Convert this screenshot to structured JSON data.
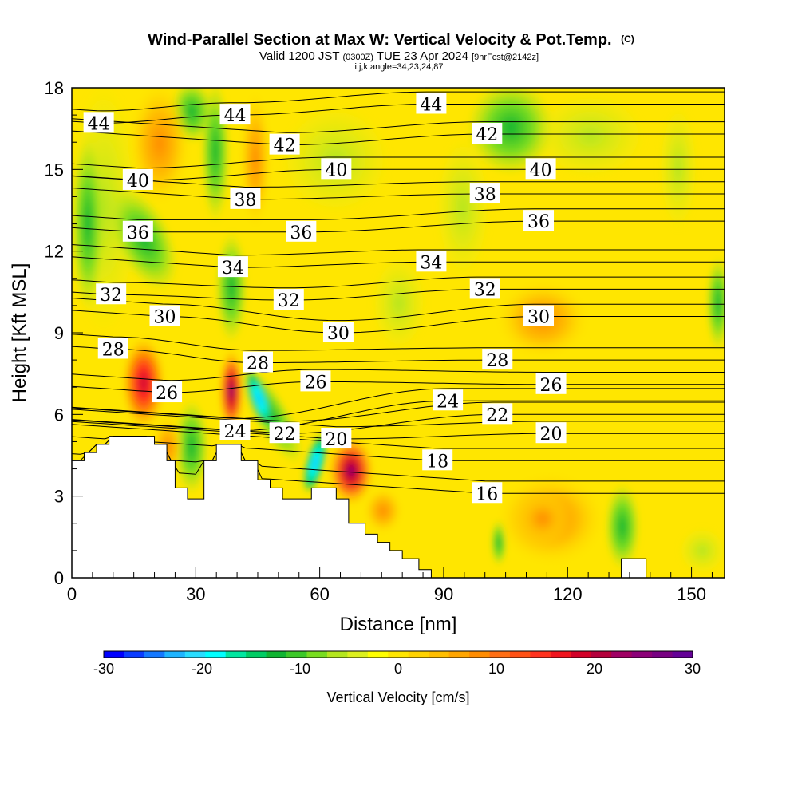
{
  "chart_data": {
    "type": "heatmap",
    "title": "Wind-Parallel Section at Max W: Vertical Velocity & Pot.Temp.",
    "title_mark": "(C)",
    "subtitle_prefix": "Valid 1200 JST",
    "subtitle_utc": "(0300Z)",
    "subtitle_date": "TUE 23 Apr 2024",
    "subtitle_fcst": "[9hrFcst@2142z]",
    "subtitle_indices": "i,j,k,angle=34,23,24,87",
    "xlabel": "Distance [nm]",
    "ylabel": "Height [Kft MSL]",
    "xlim": [
      0,
      158
    ],
    "ylim": [
      0,
      18
    ],
    "x_ticks": [
      0,
      30,
      60,
      90,
      120,
      150
    ],
    "y_ticks": [
      0,
      3,
      6,
      9,
      12,
      15,
      18
    ],
    "colorbar": {
      "label": "Vertical Velocity [cm/s]",
      "range": [
        -30,
        30
      ],
      "ticks": [
        -30,
        -20,
        -10,
        0,
        10,
        20,
        30
      ],
      "colors": [
        "#0000ff",
        "#0a3cff",
        "#1478ff",
        "#1eb4ff",
        "#28dcff",
        "#00ffff",
        "#00e6a0",
        "#00cc64",
        "#10b432",
        "#3cc828",
        "#78dc20",
        "#b4e61e",
        "#dcf01e",
        "#ffff00",
        "#ffe600",
        "#ffd200",
        "#ffbe00",
        "#ffa500",
        "#ff8c00",
        "#ff6e14",
        "#ff5014",
        "#ff321e",
        "#f0141e",
        "#d20028",
        "#b4003c",
        "#a00064",
        "#8c0078",
        "#780082",
        "#640096"
      ]
    },
    "theta_contour_labels": [
      {
        "value": "44",
        "x": 6.5,
        "y": 16.7
      },
      {
        "value": "44",
        "x": 39.5,
        "y": 17.0
      },
      {
        "value": "44",
        "x": 87,
        "y": 17.4
      },
      {
        "value": "42",
        "x": 51.5,
        "y": 15.9
      },
      {
        "value": "42",
        "x": 100.5,
        "y": 16.3
      },
      {
        "value": "40",
        "x": 16,
        "y": 14.6
      },
      {
        "value": "40",
        "x": 64,
        "y": 15.0
      },
      {
        "value": "40",
        "x": 113.5,
        "y": 15.0
      },
      {
        "value": "38",
        "x": 42,
        "y": 13.9
      },
      {
        "value": "38",
        "x": 100,
        "y": 14.1
      },
      {
        "value": "36",
        "x": 16,
        "y": 12.7
      },
      {
        "value": "36",
        "x": 55.5,
        "y": 12.7
      },
      {
        "value": "36",
        "x": 113,
        "y": 13.1
      },
      {
        "value": "34",
        "x": 39,
        "y": 11.4
      },
      {
        "value": "34",
        "x": 87,
        "y": 11.6
      },
      {
        "value": "32",
        "x": 9.5,
        "y": 10.4
      },
      {
        "value": "32",
        "x": 52.5,
        "y": 10.2
      },
      {
        "value": "32",
        "x": 100,
        "y": 10.6
      },
      {
        "value": "30",
        "x": 22.5,
        "y": 9.6
      },
      {
        "value": "30",
        "x": 64.5,
        "y": 9.0
      },
      {
        "value": "30",
        "x": 113,
        "y": 9.6
      },
      {
        "value": "28",
        "x": 10,
        "y": 8.4
      },
      {
        "value": "28",
        "x": 45,
        "y": 7.9
      },
      {
        "value": "28",
        "x": 103,
        "y": 8.0
      },
      {
        "value": "26",
        "x": 23,
        "y": 6.8
      },
      {
        "value": "26",
        "x": 59,
        "y": 7.2
      },
      {
        "value": "26",
        "x": 116,
        "y": 7.1
      },
      {
        "value": "24",
        "x": 39.5,
        "y": 5.4
      },
      {
        "value": "24",
        "x": 91,
        "y": 6.5
      },
      {
        "value": "22",
        "x": 51.5,
        "y": 5.3
      },
      {
        "value": "22",
        "x": 103,
        "y": 6.0
      },
      {
        "value": "20",
        "x": 64,
        "y": 5.1
      },
      {
        "value": "20",
        "x": 116,
        "y": 5.3
      },
      {
        "value": "18",
        "x": 88.5,
        "y": 4.3
      },
      {
        "value": "16",
        "x": 100.5,
        "y": 3.1
      }
    ],
    "terrain_height_kft": [
      [
        0,
        4.3
      ],
      [
        3,
        4.3
      ],
      [
        3,
        4.6
      ],
      [
        6,
        4.6
      ],
      [
        6,
        4.9
      ],
      [
        9,
        4.9
      ],
      [
        9,
        5.2
      ],
      [
        20,
        5.2
      ],
      [
        20,
        4.9
      ],
      [
        23,
        4.9
      ],
      [
        23,
        4.3
      ],
      [
        25,
        4.3
      ],
      [
        25,
        3.3
      ],
      [
        28,
        3.3
      ],
      [
        28,
        2.9
      ],
      [
        32,
        2.9
      ],
      [
        32,
        4.3
      ],
      [
        35,
        4.3
      ],
      [
        35,
        4.9
      ],
      [
        41,
        4.9
      ],
      [
        41,
        4.3
      ],
      [
        45,
        4.3
      ],
      [
        45,
        3.6
      ],
      [
        48,
        3.6
      ],
      [
        48,
        3.3
      ],
      [
        51,
        3.3
      ],
      [
        51,
        2.9
      ],
      [
        58,
        2.9
      ],
      [
        58,
        3.3
      ],
      [
        64,
        3.3
      ],
      [
        64,
        2.9
      ],
      [
        67,
        2.9
      ],
      [
        67,
        2.0
      ],
      [
        71,
        2.0
      ],
      [
        71,
        1.6
      ],
      [
        74,
        1.6
      ],
      [
        74,
        1.3
      ],
      [
        77,
        1.3
      ],
      [
        77,
        1.0
      ],
      [
        80,
        1.0
      ],
      [
        80,
        0.7
      ],
      [
        84,
        0.7
      ],
      [
        84,
        0.3
      ],
      [
        87,
        0.3
      ],
      [
        87,
        0.0
      ],
      [
        133,
        0.0
      ],
      [
        133,
        0.7
      ],
      [
        139,
        0.7
      ],
      [
        139,
        0.0
      ],
      [
        158,
        0.0
      ]
    ]
  }
}
